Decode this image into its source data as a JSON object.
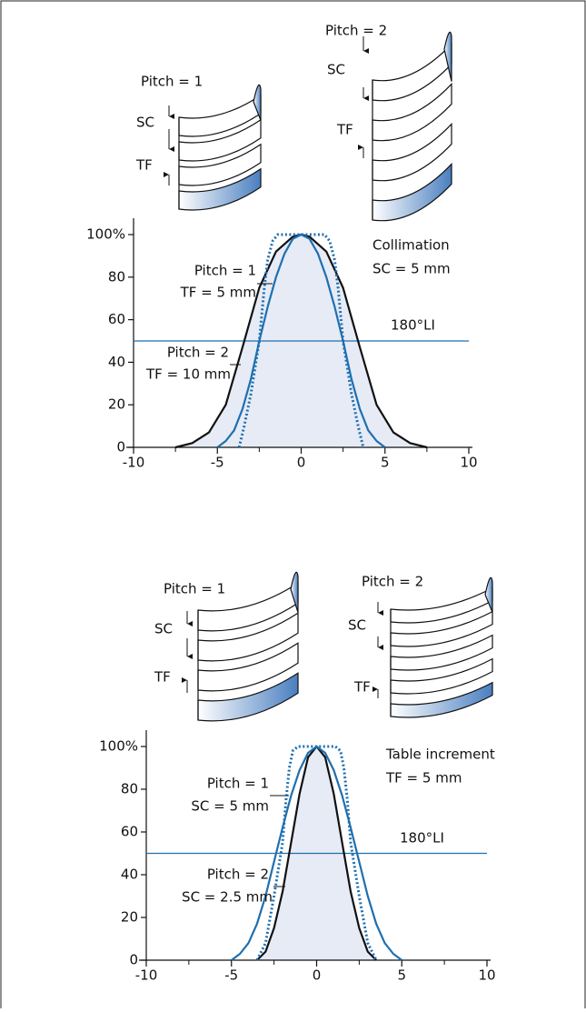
{
  "chart_data": [
    {
      "type": "line",
      "helices": [
        {
          "title": "Pitch = 1",
          "labels": [
            "SC",
            "TF"
          ]
        },
        {
          "title": "Pitch = 2",
          "labels": [
            "SC",
            "TF"
          ]
        }
      ],
      "xlim": [
        -10,
        10
      ],
      "xticks": [
        -10,
        -5,
        0,
        5,
        10
      ],
      "xticks_minor": [
        -7.5,
        -2.5,
        2.5,
        7.5
      ],
      "ylim": [
        0,
        100
      ],
      "yticks": [
        0,
        20,
        40,
        60,
        80,
        {
          "value": 100,
          "label": "100%"
        }
      ],
      "series": [
        {
          "color": "#111111",
          "line_style": "solid",
          "fill": "#e6ebf5",
          "x": [
            -7.5,
            -6.5,
            -5.5,
            -4.5,
            -3.5,
            -2.5,
            -1.5,
            -0.5,
            0,
            0.5,
            1.5,
            2.5,
            3.5,
            4.5,
            5.5,
            6.5,
            7.5
          ],
          "values": [
            0,
            2,
            7,
            20,
            47,
            75,
            92,
            99,
            100,
            99,
            92,
            75,
            47,
            20,
            7,
            2,
            0
          ]
        },
        {
          "color": "#1f6fb0",
          "line_style": "solid",
          "x": [
            -5,
            -4.5,
            -4,
            -3.5,
            -3,
            -2.5,
            -2,
            -1.5,
            -1,
            -0.5,
            0,
            0.5,
            1,
            1.5,
            2,
            2.5,
            3,
            3.5,
            4,
            4.5,
            5
          ],
          "values": [
            0,
            3,
            8,
            18,
            32,
            50,
            66,
            80,
            91,
            98,
            100,
            98,
            91,
            80,
            66,
            50,
            32,
            18,
            8,
            3,
            0
          ]
        },
        {
          "color": "#1f6fb0",
          "line_style": "dotted",
          "x": [
            -3.7,
            -3.4,
            -3,
            -2.5,
            -2.2,
            -2,
            -1.7,
            -1.4,
            0,
            1.4,
            1.7,
            2,
            2.2,
            2.5,
            3,
            3.4,
            3.7
          ],
          "values": [
            0,
            10,
            25,
            50,
            75,
            88,
            97,
            100,
            100,
            100,
            97,
            88,
            75,
            50,
            25,
            10,
            0
          ]
        }
      ],
      "reference_line": {
        "value": 50,
        "label": "180°LI",
        "color": "#1f6fb0"
      },
      "annotations": [
        "Collimation",
        "SC = 5 mm",
        "Pitch = 1",
        "TF = 5 mm",
        "Pitch = 2",
        "TF = 10 mm"
      ]
    },
    {
      "type": "line",
      "helices": [
        {
          "title": "Pitch = 1",
          "labels": [
            "SC",
            "TF"
          ]
        },
        {
          "title": "Pitch = 2",
          "labels": [
            "SC",
            "TF"
          ]
        }
      ],
      "xlim": [
        -10,
        10
      ],
      "xticks": [
        -10,
        -5,
        0,
        5,
        10
      ],
      "xticks_minor": [
        -7.5,
        -2.5,
        2.5,
        7.5
      ],
      "ylim": [
        0,
        100
      ],
      "yticks": [
        0,
        20,
        40,
        60,
        80,
        {
          "value": 100,
          "label": "100%"
        }
      ],
      "series": [
        {
          "color": "#111111",
          "line_style": "solid",
          "fill": "#e6ebf5",
          "x": [
            -3.5,
            -3,
            -2.5,
            -2,
            -1.5,
            -1,
            -0.5,
            0,
            0.5,
            1,
            1.5,
            2,
            2.5,
            3,
            3.5
          ],
          "values": [
            0,
            4,
            15,
            32,
            55,
            78,
            95,
            100,
            95,
            78,
            55,
            32,
            15,
            4,
            0
          ]
        },
        {
          "color": "#1f6fb0",
          "line_style": "solid",
          "x": [
            -5,
            -4.5,
            -4,
            -3.5,
            -3,
            -2.5,
            -2,
            -1.5,
            -1,
            -0.5,
            0,
            0.5,
            1,
            1.5,
            2,
            2.5,
            3,
            3.5,
            4,
            4.5,
            5
          ],
          "values": [
            0,
            3,
            8,
            17,
            30,
            46,
            62,
            77,
            89,
            97,
            100,
            97,
            89,
            77,
            62,
            46,
            30,
            17,
            8,
            3,
            0
          ]
        },
        {
          "color": "#1f6fb0",
          "line_style": "dotted",
          "x": [
            -3.5,
            -3,
            -2.5,
            -2,
            -1.8,
            -1.6,
            -1.4,
            -1.1,
            0,
            1.1,
            1.4,
            1.6,
            1.8,
            2,
            2.5,
            3,
            3.5
          ],
          "values": [
            0,
            8,
            30,
            55,
            75,
            90,
            98,
            100,
            100,
            100,
            98,
            90,
            75,
            55,
            30,
            8,
            0
          ]
        }
      ],
      "reference_line": {
        "value": 50,
        "label": "180°LI",
        "color": "#1f6fb0"
      },
      "annotations": [
        "Table increment",
        "TF = 5 mm",
        "Pitch = 1",
        "SC = 5 mm",
        "Pitch = 2",
        "SC = 2.5 mm"
      ]
    }
  ]
}
